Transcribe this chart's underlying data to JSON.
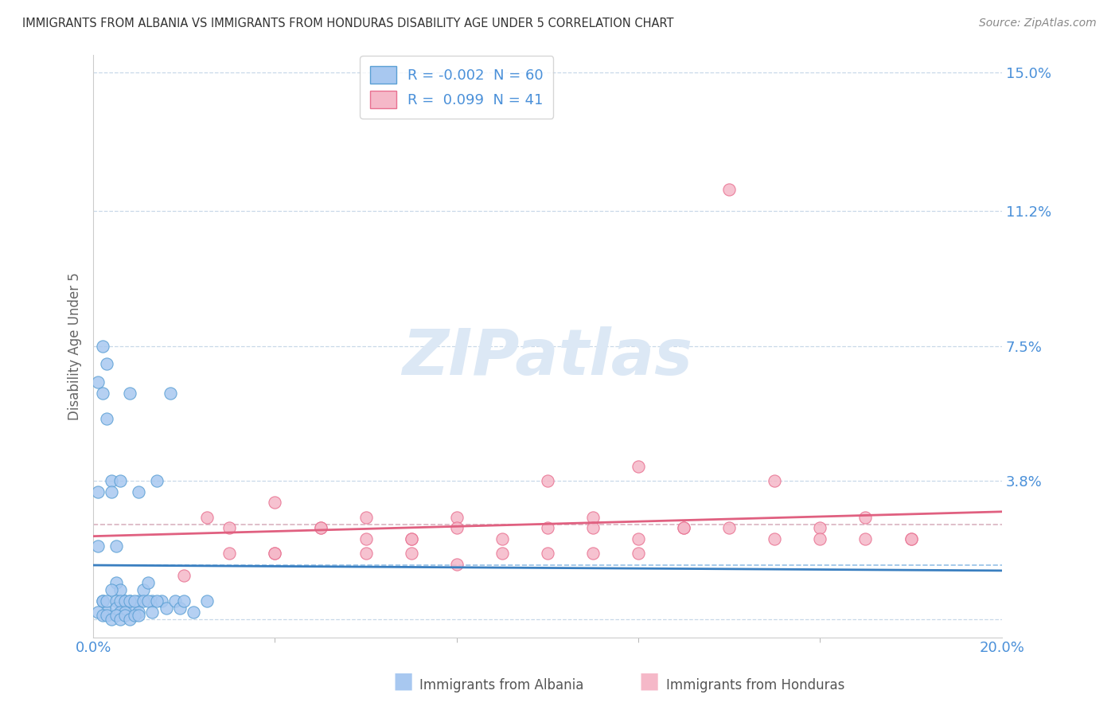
{
  "title": "IMMIGRANTS FROM ALBANIA VS IMMIGRANTS FROM HONDURAS DISABILITY AGE UNDER 5 CORRELATION CHART",
  "source": "Source: ZipAtlas.com",
  "ylabel": "Disability Age Under 5",
  "xlim": [
    0.0,
    0.2
  ],
  "ylim": [
    -0.005,
    0.155
  ],
  "ytick_positions": [
    0.0,
    0.038,
    0.075,
    0.112,
    0.15
  ],
  "ytick_labels": [
    "",
    "3.8%",
    "7.5%",
    "11.2%",
    "15.0%"
  ],
  "albania_color": "#a8c8f0",
  "honduras_color": "#f5b8c8",
  "albania_edge_color": "#5a9fd4",
  "honduras_edge_color": "#e87090",
  "albania_line_color": "#3a7fc0",
  "honduras_line_color": "#e06080",
  "albania_mean_line_color": "#7ab0e0",
  "honduras_mean_line_color": "#d0a0b0",
  "albania_R": -0.002,
  "albania_N": 60,
  "honduras_R": 0.099,
  "honduras_N": 41,
  "background_color": "#ffffff",
  "grid_color": "#c8d8e8",
  "title_color": "#333333",
  "axis_tick_color": "#4a90d9",
  "legend_text_color": "#4a90d9",
  "watermark_color": "#dce8f5",
  "albania_scatter_x": [
    0.001,
    0.002,
    0.002,
    0.003,
    0.003,
    0.004,
    0.004,
    0.005,
    0.005,
    0.006,
    0.006,
    0.007,
    0.007,
    0.008,
    0.008,
    0.009,
    0.01,
    0.01,
    0.011,
    0.012,
    0.013,
    0.014,
    0.015,
    0.016,
    0.017,
    0.018,
    0.019,
    0.02,
    0.022,
    0.025,
    0.001,
    0.001,
    0.002,
    0.002,
    0.003,
    0.003,
    0.004,
    0.005,
    0.005,
    0.006,
    0.006,
    0.007,
    0.007,
    0.008,
    0.009,
    0.01,
    0.011,
    0.012,
    0.013,
    0.014,
    0.001,
    0.002,
    0.003,
    0.004,
    0.005,
    0.006,
    0.007,
    0.008,
    0.009,
    0.01
  ],
  "albania_scatter_y": [
    0.065,
    0.075,
    0.062,
    0.055,
    0.07,
    0.038,
    0.035,
    0.02,
    0.01,
    0.008,
    0.038,
    0.005,
    0.003,
    0.062,
    0.005,
    0.003,
    0.005,
    0.002,
    0.008,
    0.01,
    0.005,
    0.038,
    0.005,
    0.003,
    0.062,
    0.005,
    0.003,
    0.005,
    0.002,
    0.005,
    0.035,
    0.02,
    0.005,
    0.005,
    0.002,
    0.005,
    0.008,
    0.005,
    0.003,
    0.005,
    0.002,
    0.005,
    0.002,
    0.005,
    0.005,
    0.035,
    0.005,
    0.005,
    0.002,
    0.005,
    0.002,
    0.001,
    0.001,
    0.0,
    0.001,
    0.0,
    0.001,
    0.0,
    0.001,
    0.001
  ],
  "honduras_scatter_x": [
    0.025,
    0.03,
    0.04,
    0.05,
    0.06,
    0.07,
    0.08,
    0.09,
    0.1,
    0.11,
    0.12,
    0.13,
    0.14,
    0.15,
    0.16,
    0.17,
    0.18,
    0.12,
    0.08,
    0.06,
    0.1,
    0.11,
    0.13,
    0.07,
    0.14,
    0.04,
    0.16,
    0.18,
    0.15,
    0.17,
    0.02,
    0.03,
    0.05,
    0.07,
    0.09,
    0.11,
    0.04,
    0.06,
    0.08,
    0.12,
    0.1
  ],
  "honduras_scatter_y": [
    0.028,
    0.025,
    0.032,
    0.025,
    0.028,
    0.022,
    0.028,
    0.022,
    0.025,
    0.028,
    0.022,
    0.025,
    0.118,
    0.022,
    0.025,
    0.028,
    0.022,
    0.042,
    0.025,
    0.022,
    0.038,
    0.025,
    0.025,
    0.022,
    0.025,
    0.018,
    0.022,
    0.022,
    0.038,
    0.022,
    0.012,
    0.018,
    0.025,
    0.018,
    0.018,
    0.018,
    0.018,
    0.018,
    0.015,
    0.018,
    0.018
  ]
}
